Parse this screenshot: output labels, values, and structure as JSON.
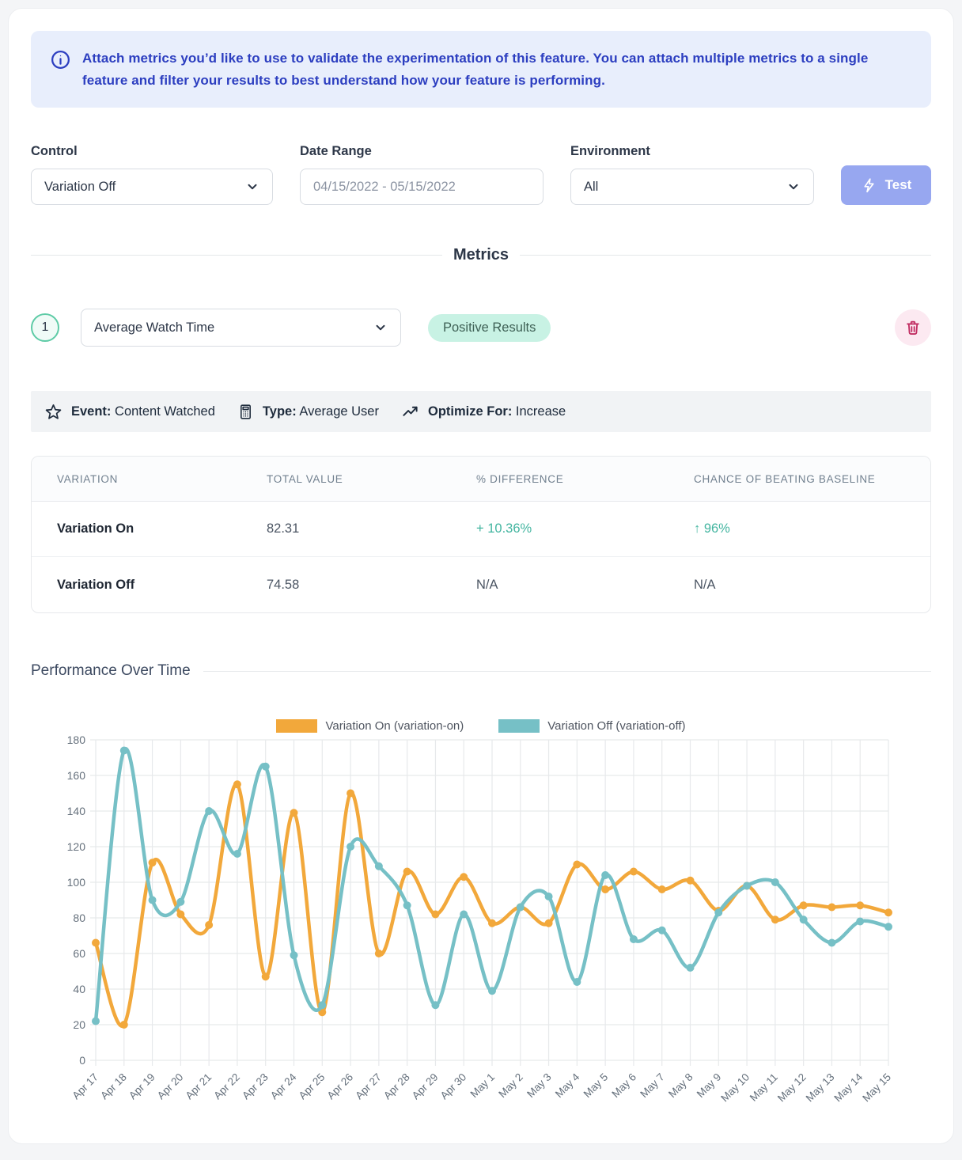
{
  "banner": {
    "text": "Attach metrics you’d like to use to validate the experimentation of this feature. You can attach multiple metrics to a single feature and filter your results to best understand how your feature is performing."
  },
  "filters": {
    "control_label": "Control",
    "control_value": "Variation Off",
    "date_label": "Date Range",
    "date_value": "04/15/2022 - 05/15/2022",
    "environment_label": "Environment",
    "environment_value": "All",
    "test_button_label": "Test"
  },
  "metrics_section": {
    "heading": "Metrics",
    "metric": {
      "index": "1",
      "name": "Average Watch Time",
      "result_badge": "Positive Results",
      "event_label": "Event:",
      "event_value": "Content Watched",
      "type_label": "Type:",
      "type_value": "Average User",
      "optimize_label": "Optimize For:",
      "optimize_value": "Increase"
    },
    "table": {
      "headers": [
        "VARIATION",
        "TOTAL VALUE",
        "% DIFFERENCE",
        "CHANCE OF BEATING BASELINE"
      ],
      "rows": [
        {
          "variation": "Variation On",
          "total": "82.31",
          "difference": "+ 10.36%",
          "chance": "↑ 96%",
          "positive": true
        },
        {
          "variation": "Variation Off",
          "total": "74.58",
          "difference": "N/A",
          "chance": "N/A",
          "positive": false
        }
      ]
    }
  },
  "performance": {
    "heading": "Performance Over Time"
  },
  "chart_data": {
    "type": "line",
    "x": [
      "Apr 17",
      "Apr 18",
      "Apr 19",
      "Apr 20",
      "Apr 21",
      "Apr 22",
      "Apr 23",
      "Apr 24",
      "Apr 25",
      "Apr 26",
      "Apr 27",
      "Apr 28",
      "Apr 29",
      "Apr 30",
      "May 1",
      "May 2",
      "May 3",
      "May 4",
      "May 5",
      "May 6",
      "May 7",
      "May 8",
      "May 9",
      "May 10",
      "May 11",
      "May 12",
      "May 13",
      "May 14",
      "May 15"
    ],
    "series": [
      {
        "name": "Variation On (variation-on)",
        "color": "#f2a83b",
        "values": [
          66,
          20,
          111,
          82,
          76,
          155,
          47,
          139,
          27,
          150,
          60,
          106,
          82,
          103,
          77,
          86,
          77,
          110,
          96,
          106,
          96,
          101,
          84,
          98,
          79,
          87,
          86,
          87,
          83
        ]
      },
      {
        "name": "Variation Off (variation-off)",
        "color": "#76c0c6",
        "values": [
          22,
          174,
          90,
          89,
          140,
          116,
          165,
          59,
          31,
          120,
          109,
          87,
          31,
          82,
          39,
          86,
          92,
          44,
          104,
          68,
          73,
          52,
          83,
          98,
          100,
          79,
          66,
          78,
          75
        ]
      }
    ],
    "title": "",
    "xlabel": "",
    "ylabel": "",
    "ylim": [
      0,
      180
    ],
    "ytick_step": 20,
    "grid": true,
    "legend_position": "top",
    "grid_color": "#e7e9eb",
    "tick_color": "#65707c"
  },
  "colors": {
    "accent_blue": "#2c3ec0",
    "banner_bg": "#e8eefc",
    "button_bg": "#97a7f0",
    "positive_green": "#43b5a0",
    "badge_bg": "#c8f2e4",
    "trash_pink": "#c12d62"
  }
}
